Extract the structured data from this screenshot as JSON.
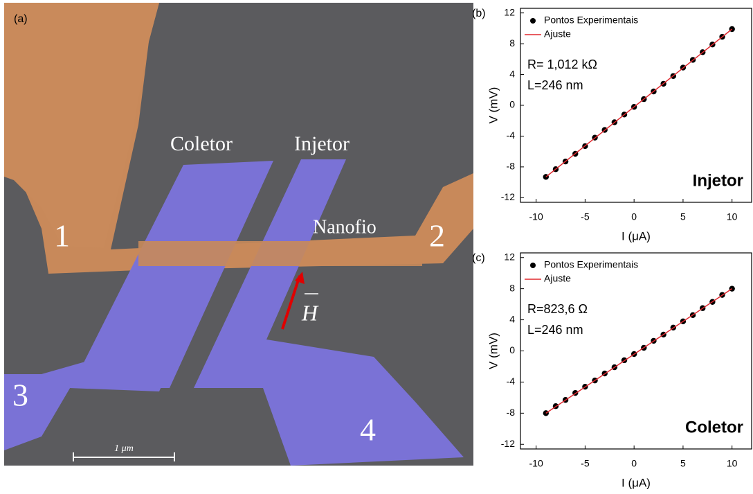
{
  "image": {
    "panel_label": "(a)",
    "labels": [
      "Coletor",
      "Injetor",
      "Nanofio"
    ],
    "contacts": [
      "1",
      "2",
      "3",
      "4"
    ],
    "scale_bar": "1 μm",
    "field_label": "H"
  },
  "chart_data": [
    {
      "type": "scatter",
      "panel": "(b)",
      "xlabel": "I (μA)",
      "ylabel": "V (mV)",
      "annotations": [
        "R= 1,012 kΩ",
        "L=246 nm"
      ],
      "label": "Injetor",
      "xlim": [
        -11.6,
        12
      ],
      "xticks": [
        -10,
        -5,
        0,
        5,
        10
      ],
      "ylim": [
        -12.6,
        12.6
      ],
      "yticks": [
        -12,
        -8,
        -4,
        0,
        4,
        8,
        12
      ],
      "series": [
        {
          "name": "Pontos Experimentais",
          "type": "scatter",
          "color": "#000000",
          "x": [
            -9,
            -8,
            -7,
            -6,
            -5,
            -4,
            -3,
            -2,
            -1,
            0,
            1,
            2,
            3,
            4,
            5,
            6,
            7,
            8,
            9,
            10
          ],
          "values": [
            -9.3,
            -8.3,
            -7.3,
            -6.3,
            -5.3,
            -4.2,
            -3.2,
            -2.2,
            -1.2,
            -0.2,
            0.8,
            1.8,
            2.8,
            3.8,
            4.9,
            5.9,
            6.9,
            7.9,
            8.9,
            9.9
          ]
        },
        {
          "name": "Ajuste",
          "type": "line",
          "color": "#e0282e",
          "x": [
            -9,
            10
          ],
          "values": [
            -9.3,
            9.9
          ]
        }
      ],
      "legend": "upper left"
    },
    {
      "type": "scatter",
      "panel": "(c)",
      "xlabel": "I (μA)",
      "ylabel": "V (mV)",
      "annotations": [
        "R=823,6 Ω",
        "L=246 nm"
      ],
      "label": "Coletor",
      "xlim": [
        -11.6,
        12
      ],
      "xticks": [
        -10,
        -5,
        0,
        5,
        10
      ],
      "ylim": [
        -12.6,
        12.6
      ],
      "yticks": [
        -12,
        -8,
        -4,
        0,
        4,
        8,
        12
      ],
      "series": [
        {
          "name": "Pontos Experimentais",
          "type": "scatter",
          "color": "#000000",
          "x": [
            -9,
            -8,
            -7,
            -6,
            -5,
            -4,
            -3,
            -2,
            -1,
            0,
            1,
            2,
            3,
            4,
            5,
            6,
            7,
            8,
            9,
            10
          ],
          "values": [
            -8.0,
            -7.1,
            -6.3,
            -5.4,
            -4.6,
            -3.8,
            -2.9,
            -2.1,
            -1.2,
            -0.4,
            0.4,
            1.3,
            2.1,
            3.0,
            3.8,
            4.6,
            5.5,
            6.3,
            7.2,
            8.0
          ]
        },
        {
          "name": "Ajuste",
          "type": "line",
          "color": "#e0282e",
          "x": [
            -9,
            10
          ],
          "values": [
            -8.0,
            8.0
          ]
        }
      ],
      "legend": "upper left"
    }
  ]
}
